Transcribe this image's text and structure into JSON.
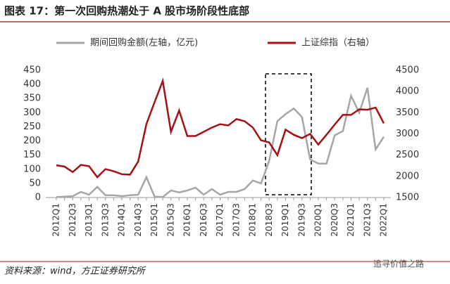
{
  "chart_data": {
    "type": "line",
    "title": "图表 17：第一次回购热潮处于 A 股市场阶段性底部",
    "source": "资料来源：wind，方正证券研究所",
    "watermark": "追寻价值之路",
    "categories": [
      "2012Q1",
      null,
      "2012Q3",
      null,
      "2013Q1",
      null,
      "2013Q3",
      null,
      "2014Q1",
      null,
      "2014Q3",
      null,
      "2015Q1",
      null,
      "2015Q3",
      null,
      "2016Q1",
      null,
      "2016Q3",
      null,
      "2017Q1",
      null,
      "2017Q3",
      null,
      "2018Q1",
      null,
      "2018Q3",
      null,
      "2019Q1",
      null,
      "2019Q3",
      null,
      "2020Q1",
      null,
      "2020Q3",
      null,
      "2021Q1",
      null,
      "2021Q3",
      null,
      "2022Q1"
    ],
    "series": [
      {
        "name": "期间回购金额(左轴，亿元)",
        "color": "#a6a6a6",
        "values": [
          2,
          3,
          5,
          20,
          10,
          38,
          8,
          8,
          5,
          8,
          10,
          72,
          3,
          2,
          25,
          18,
          25,
          35,
          10,
          30,
          10,
          20,
          20,
          30,
          60,
          50,
          130,
          270,
          295,
          315,
          285,
          135,
          120,
          120,
          220,
          235,
          360,
          300,
          388,
          170,
          215
        ]
      },
      {
        "name": "上证综指（右轴）",
        "color": "#a50f15",
        "axis": "y2",
        "values": [
          2260,
          2230,
          2100,
          2270,
          2240,
          1980,
          2170,
          2120,
          2050,
          2040,
          2350,
          3230,
          3750,
          4250,
          3050,
          3550,
          2950,
          2950,
          3050,
          3150,
          3230,
          3200,
          3350,
          3300,
          3150,
          2850,
          2800,
          2500,
          3100,
          2980,
          2900,
          3000,
          2750,
          2980,
          3220,
          3450,
          3450,
          3580,
          3570,
          3620,
          3250
        ]
      }
    ],
    "ylim": [
      0,
      450
    ],
    "yticks": [
      0,
      50,
      100,
      150,
      200,
      250,
      300,
      350,
      400,
      450
    ],
    "y2lim": [
      1500,
      4500
    ],
    "y2ticks": [
      1500,
      2000,
      2500,
      3000,
      3500,
      4000,
      4500
    ]
  }
}
